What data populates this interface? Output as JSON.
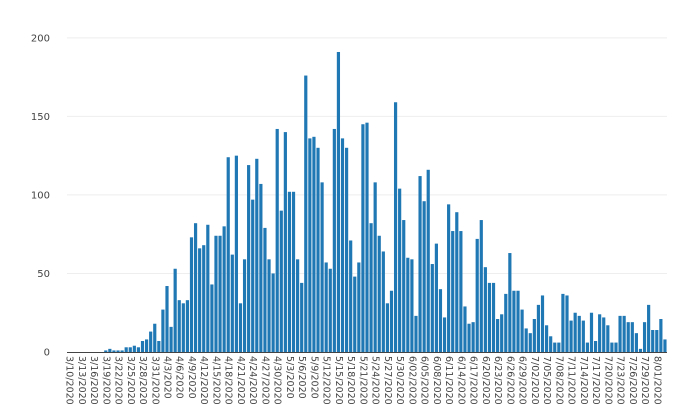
{
  "chart_data": {
    "type": "bar",
    "title": "",
    "xlabel": "",
    "ylabel": "",
    "ylim": [
      0,
      205
    ],
    "yticks": [
      0,
      50,
      100,
      150,
      200
    ],
    "grid": true,
    "bar_color": "#1f77b4",
    "start_date": "3/10/2020",
    "tick_every_n_days": 3,
    "tick_labels": [
      "3/10/2020",
      "3/13/2020",
      "3/16/2020",
      "3/19/2020",
      "3/22/2020",
      "3/25/2020",
      "3/28/2020",
      "3/31/2020",
      "4/3/2020",
      "4/6/2020",
      "4/9/2020",
      "4/12/2020",
      "4/15/2020",
      "4/18/2020",
      "4/21/2020",
      "4/24/2020",
      "4/27/2020",
      "4/30/2020",
      "5/3/2020",
      "5/6/2020",
      "5/9/2020",
      "5/12/2020",
      "5/15/2020",
      "5/18/2020",
      "5/21/2020",
      "5/24/2020",
      "5/27/2020",
      "5/30/2020",
      "6/02/2020",
      "6/05/2020",
      "6/08/2020",
      "6/11/2020",
      "6/14/2020",
      "6/17/2020",
      "6/20/2020",
      "6/23/2020",
      "6/26/2020",
      "6/29/2020",
      "7/02/2020",
      "7/05/2020",
      "7/08/2020",
      "7/11/2020",
      "7/14/2020",
      "7/17/2020",
      "7/20/2020",
      "7/23/2020",
      "7/26/2020",
      "7/29/2020",
      "8/01/2020"
    ],
    "values": [
      0,
      0,
      0,
      0,
      0,
      0,
      0,
      0,
      0,
      1,
      2,
      1,
      1,
      1,
      3,
      3,
      4,
      3,
      7,
      8,
      13,
      18,
      7,
      27,
      42,
      16,
      53,
      33,
      31,
      33,
      73,
      82,
      66,
      68,
      81,
      43,
      74,
      74,
      80,
      124,
      62,
      125,
      31,
      59,
      119,
      97,
      123,
      107,
      79,
      59,
      50,
      142,
      90,
      140,
      102,
      102,
      59,
      44,
      176,
      136,
      137,
      130,
      108,
      57,
      53,
      142,
      191,
      136,
      130,
      71,
      48,
      57,
      145,
      146,
      82,
      108,
      74,
      64,
      31,
      39,
      159,
      104,
      84,
      60,
      59,
      23,
      112,
      96,
      116,
      56,
      69,
      40,
      22,
      94,
      77,
      89,
      77,
      29,
      18,
      19,
      72,
      84,
      54,
      44,
      44,
      21,
      24,
      37,
      63,
      39,
      39,
      27,
      15,
      12,
      21,
      30,
      36,
      17,
      10,
      6,
      6,
      37,
      36,
      20,
      25,
      23,
      20,
      6,
      25,
      7,
      24,
      22,
      17,
      6,
      6,
      23,
      23,
      19,
      19,
      12,
      2,
      19,
      30,
      14,
      14,
      21,
      8
    ]
  }
}
